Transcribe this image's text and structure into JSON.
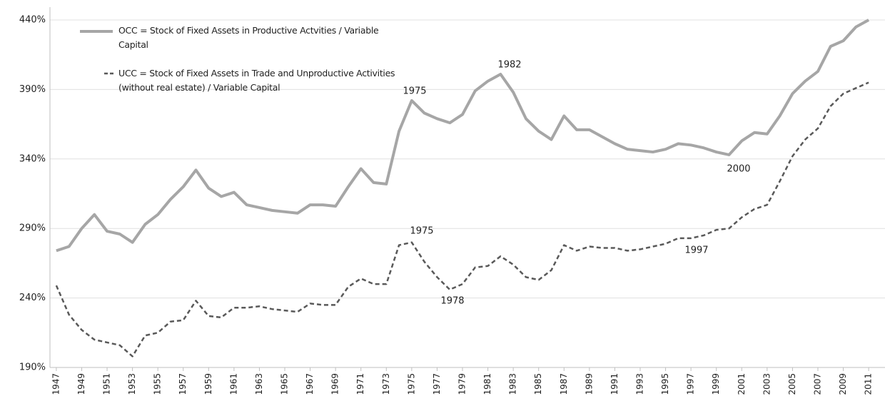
{
  "chart_data": {
    "type": "line",
    "x": [
      1947,
      1948,
      1949,
      1950,
      1951,
      1952,
      1953,
      1954,
      1955,
      1956,
      1957,
      1958,
      1959,
      1960,
      1961,
      1962,
      1963,
      1964,
      1965,
      1966,
      1967,
      1968,
      1969,
      1970,
      1971,
      1972,
      1973,
      1974,
      1975,
      1976,
      1977,
      1978,
      1979,
      1980,
      1981,
      1982,
      1983,
      1984,
      1985,
      1986,
      1987,
      1988,
      1989,
      1990,
      1991,
      1992,
      1993,
      1994,
      1995,
      1996,
      1997,
      1998,
      1999,
      2000,
      2001,
      2002,
      2003,
      2004,
      2005,
      2006,
      2007,
      2008,
      2009,
      2010,
      2011
    ],
    "series": [
      {
        "name": "OCC = Stock of Fixed Assets in Productive Actvities / Variable Capital",
        "color": "#a6a6a6",
        "dash": false,
        "values": [
          274,
          277,
          290,
          300,
          288,
          286,
          280,
          293,
          300,
          311,
          320,
          332,
          319,
          313,
          316,
          307,
          305,
          303,
          302,
          301,
          307,
          307,
          306,
          320,
          333,
          323,
          322,
          360,
          382,
          373,
          369,
          366,
          372,
          389,
          396,
          401,
          388,
          369,
          360,
          354,
          371,
          361,
          361,
          356,
          351,
          347,
          346,
          345,
          347,
          351,
          350,
          348,
          345,
          343,
          353,
          359,
          358,
          371,
          387,
          396,
          403,
          421,
          425,
          435,
          440
        ]
      },
      {
        "name": "UCC = Stock of Fixed Assets in Trade and Unproductive Activities (without real estate) / Variable Capital",
        "color": "#595959",
        "dash": true,
        "values": [
          249,
          228,
          217,
          210,
          208,
          206,
          198,
          213,
          215,
          223,
          224,
          238,
          227,
          226,
          233,
          233,
          234,
          232,
          231,
          230,
          236,
          235,
          235,
          248,
          254,
          250,
          250,
          278,
          280,
          266,
          255,
          246,
          250,
          262,
          263,
          270,
          264,
          255,
          253,
          260,
          278,
          274,
          277,
          276,
          276,
          274,
          275,
          277,
          279,
          283,
          283,
          285,
          289,
          290,
          298,
          304,
          307,
          324,
          342,
          354,
          362,
          378,
          387,
          391,
          395
        ]
      }
    ],
    "xlim": [
      1946.5,
      2011.5
    ],
    "xticks": [
      1947,
      1949,
      1951,
      1953,
      1955,
      1957,
      1959,
      1961,
      1963,
      1965,
      1967,
      1969,
      1971,
      1973,
      1975,
      1977,
      1979,
      1981,
      1983,
      1985,
      1987,
      1989,
      1991,
      1993,
      1995,
      1997,
      1999,
      2001,
      2003,
      2005,
      2007,
      2009,
      2011
    ],
    "ylim": [
      190,
      440
    ],
    "yticks": [
      {
        "value": 190,
        "label": "190%"
      },
      {
        "value": 240,
        "label": "240%"
      },
      {
        "value": 290,
        "label": "290%"
      },
      {
        "value": 340,
        "label": "340%"
      },
      {
        "value": 390,
        "label": "390%"
      },
      {
        "value": 440,
        "label": "440%"
      }
    ],
    "grid": true,
    "legend": "top-left",
    "annotations": [
      "1982",
      "1975",
      "2000",
      "1975",
      "1997",
      "1978"
    ]
  }
}
